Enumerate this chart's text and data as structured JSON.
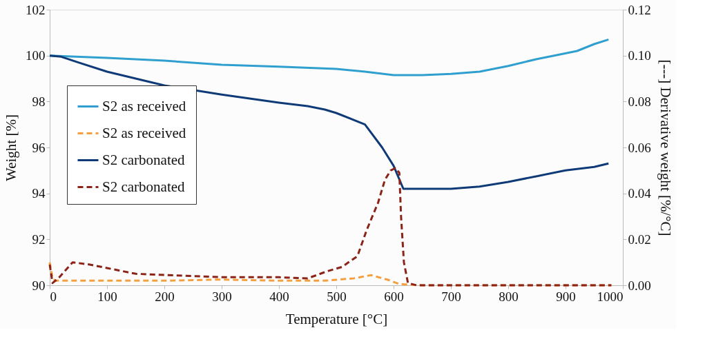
{
  "chart_data": {
    "type": "line",
    "xlabel": "Temperature [°C]",
    "ylabel": "Weight [%]",
    "y2label": "[---] Derivative weight [%/°C]",
    "xlim": [
      0,
      1000
    ],
    "xticks": [
      0,
      100,
      200,
      300,
      400,
      500,
      600,
      700,
      800,
      900,
      1000
    ],
    "ylim": [
      90,
      102
    ],
    "yticks": [
      90,
      92,
      94,
      96,
      98,
      100,
      102
    ],
    "y2lim": [
      0,
      0.12
    ],
    "y2ticks": [
      {
        "value": 0,
        "label": "0.00"
      },
      {
        "value": 0.02,
        "label": "0.02"
      },
      {
        "value": 0.04,
        "label": "0.04"
      },
      {
        "value": 0.06,
        "label": "0.06"
      },
      {
        "value": 0.08,
        "label": "0.08"
      },
      {
        "value": 0.1,
        "label": "0.10"
      },
      {
        "value": 0.12,
        "label": "0.12"
      }
    ],
    "grid": false,
    "legend": "left",
    "marker": "none",
    "series": [
      {
        "name": "S2 as received",
        "color": "#2e9fce",
        "line_style": "solid",
        "x": [
          0,
          100,
          200,
          300,
          400,
          500,
          550,
          600,
          650,
          700,
          750,
          800,
          850,
          880,
          920,
          950,
          975
        ],
        "values": [
          100,
          99.9,
          99.78,
          99.6,
          99.52,
          99.42,
          99.3,
          99.15,
          99.15,
          99.2,
          99.3,
          99.55,
          99.85,
          100.0,
          100.2,
          100.5,
          100.7
        ]
      },
      {
        "name": "S2 as received",
        "color": "#f4a040",
        "line_style": "dashed",
        "axis": "y2",
        "x": [
          0,
          5,
          10,
          100,
          200,
          300,
          400,
          480,
          530,
          561,
          590,
          609,
          630,
          650,
          980
        ],
        "values": [
          0.01,
          0.003,
          0.002,
          0.002,
          0.002,
          0.0025,
          0.002,
          0.002,
          0.003,
          0.0044,
          0.0024,
          0.0006,
          0.0002,
          0,
          0
        ]
      },
      {
        "name": "S2 carbonated",
        "color": "#0f3a78",
        "line_style": "solid",
        "x": [
          0,
          20,
          50,
          100,
          150,
          200,
          300,
          400,
          450,
          480,
          500,
          550,
          580,
          600,
          617,
          650,
          700,
          750,
          800,
          850,
          900,
          950,
          975
        ],
        "values": [
          100,
          99.95,
          99.7,
          99.3,
          99.0,
          98.7,
          98.3,
          97.95,
          97.8,
          97.65,
          97.5,
          97.0,
          96.0,
          95.2,
          94.2,
          94.2,
          94.2,
          94.3,
          94.5,
          94.75,
          95.0,
          95.15,
          95.3
        ]
      },
      {
        "name": "S2 carbonated",
        "color": "#8b2318",
        "line_style": "dashed",
        "axis": "y2",
        "x": [
          0,
          5,
          15,
          40,
          70,
          100,
          150,
          200,
          250,
          300,
          350,
          400,
          450,
          483,
          510,
          537,
          553,
          573,
          585,
          595,
          603,
          610,
          613,
          618,
          625,
          640,
          980
        ],
        "values": [
          0.009,
          0.001,
          0.003,
          0.01,
          0.009,
          0.0075,
          0.005,
          0.0045,
          0.004,
          0.0035,
          0.0035,
          0.0035,
          0.003,
          0.006,
          0.008,
          0.0127,
          0.024,
          0.036,
          0.046,
          0.05,
          0.051,
          0.049,
          0.03,
          0.01,
          0.001,
          0,
          0
        ]
      }
    ]
  }
}
